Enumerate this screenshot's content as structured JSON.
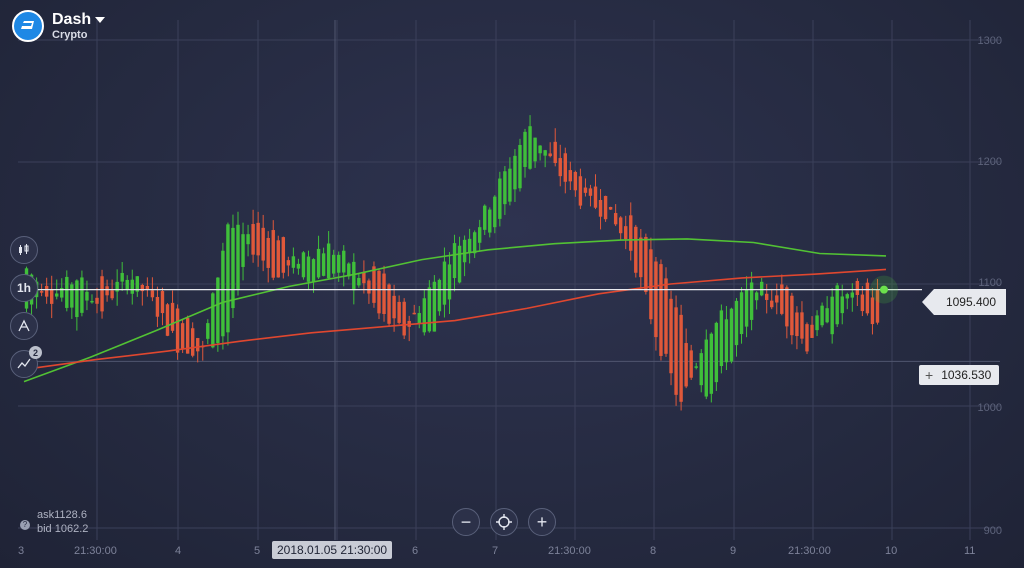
{
  "asset": {
    "name": "Dash",
    "category": "Crypto",
    "logo_icon": "dash-logo-icon"
  },
  "toolbar": {
    "chart_type_icon": "candlestick-icon",
    "timeframe": "1h",
    "drawing_icon": "drawing-tool-icon",
    "indicators_icon": "indicators-icon",
    "indicators_badge": "2"
  },
  "quote": {
    "ask": "ask1128.6",
    "bid": "bid 1062.2",
    "info_icon": "?"
  },
  "zoom": {
    "minus": "−",
    "center_icon": "crosshair-icon",
    "plus": "+"
  },
  "price_tag": "1095.400",
  "crosshair_tag": {
    "plus": "+",
    "value": "1036.530"
  },
  "colors": {
    "up": "#3fbf3a",
    "down": "#e0583a",
    "ma_green": "#52c234",
    "ma_red": "#e0472f",
    "background": "#262a3f"
  },
  "chart_data": {
    "type": "candlestick",
    "y_ticks": [
      "1300",
      "1200",
      "1100",
      "1000",
      "900"
    ],
    "x_ticks": [
      "3",
      "21:30:00",
      "4",
      "5",
      "2018.01.05 21:30:00",
      "6",
      "7",
      "21:30:00",
      "8",
      "9",
      "21:30:00",
      "10",
      "11"
    ],
    "ylim": [
      900,
      1310
    ],
    "current_price": 1095.4,
    "crosshair_price": 1036.53,
    "series": [
      {
        "name": "",
        "type": "moving-average",
        "values": [
          1020,
          1040,
          1062,
          1085,
          1098,
          1108,
          1120,
          1128,
          1133,
          1136,
          1137,
          1134,
          1125,
          1123
        ]
      },
      {
        "name": "",
        "type": "moving-average",
        "values": [
          1030,
          1038,
          1045,
          1053,
          1060,
          1065,
          1070,
          1080,
          1092,
          1100,
          1105,
          1108,
          1112
        ]
      }
    ]
  }
}
